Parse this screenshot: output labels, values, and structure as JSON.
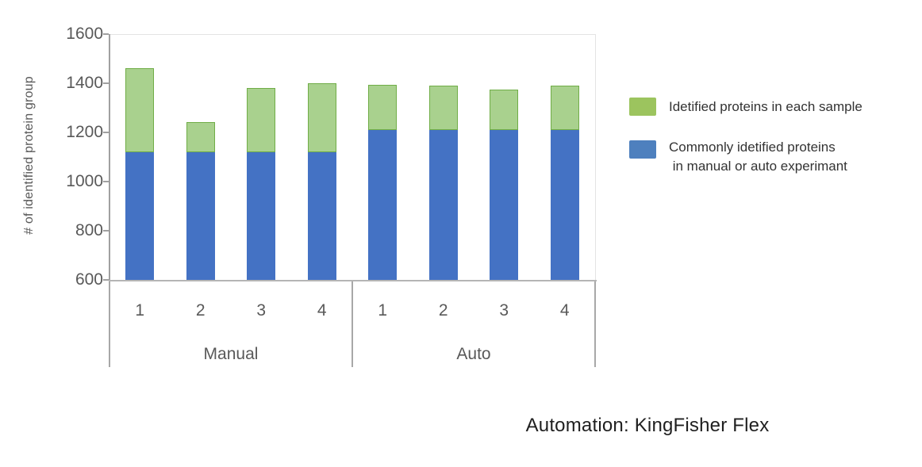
{
  "caption": "Automation: KingFisher Flex",
  "chart_data": {
    "type": "bar",
    "stacked": true,
    "title": "",
    "xlabel": "",
    "ylabel": "# of identified protein group",
    "ylim": [
      600,
      1600
    ],
    "yticks": [
      1600,
      1400,
      1200,
      1000,
      800,
      600
    ],
    "grid": false,
    "legend_position": "right",
    "groups": [
      {
        "label": "Manual",
        "categories": [
          "1",
          "2",
          "3",
          "4"
        ],
        "total_identified": [
          1460,
          1243,
          1380,
          1400
        ],
        "commonly_identified": [
          1120,
          1120,
          1120,
          1120
        ]
      },
      {
        "label": "Auto",
        "categories": [
          "1",
          "2",
          "3",
          "4"
        ],
        "total_identified": [
          1394,
          1390,
          1375,
          1390
        ],
        "commonly_identified": [
          1210,
          1210,
          1210,
          1210
        ]
      }
    ],
    "series": [
      {
        "name": "Idetified proteins in each sample",
        "maps_to": "total_identified",
        "fill": "#A9D18E",
        "border": "#70AD47"
      },
      {
        "name": "Commonly idetified proteins in manual or auto experimant",
        "maps_to": "commonly_identified",
        "fill": "#4472C4"
      }
    ]
  },
  "legend": {
    "items": [
      {
        "swatch_color": "#9CC45E",
        "lines": [
          "Idetified proteins in each sample"
        ]
      },
      {
        "swatch_color": "#4E80BE",
        "lines": [
          "Commonly idetified proteins",
          " in manual or auto experimant"
        ]
      }
    ]
  },
  "colors": {
    "bar_blue": "#4472C4",
    "bar_green_fill": "#A9D18E",
    "bar_green_border": "#70AD47",
    "axis_text": "#595959",
    "axis_line": "#A0A0A0"
  }
}
